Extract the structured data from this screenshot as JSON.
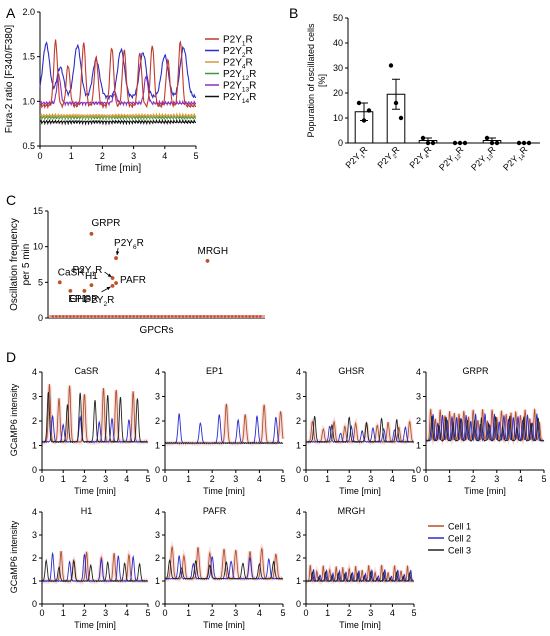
{
  "panels": {
    "A": "A",
    "B": "B",
    "C": "C",
    "D": "D"
  },
  "colors": {
    "P2Y1R": "#c0392b",
    "P2Y2R": "#2c2cc8",
    "P2Y4R": "#d79a3c",
    "P2Y12R": "#3a9a3a",
    "P2Y13R": "#8a2fb5",
    "P2Y14R": "#111111",
    "cell1": "#b5502a",
    "cell2": "#2b2bd0",
    "cell3": "#222222",
    "dot": "#c0502a",
    "band": "#e5a0a0"
  },
  "chart_data": [
    {
      "panel": "A",
      "type": "line",
      "xlabel": "Time [min]",
      "ylabel": "Fura-2 ratio [F340/F380]",
      "xlim": [
        0,
        5
      ],
      "ylim": [
        0.5,
        2.0
      ],
      "xticks": [
        "0",
        "1",
        "2",
        "3",
        "4",
        "5"
      ],
      "yticks": [
        "0.5",
        "1.0",
        "1.5",
        "2.0"
      ],
      "legend_position": "right",
      "series": [
        {
          "name": "P2Y1R",
          "label_base": "P2Y",
          "label_sub": "1",
          "label_suffix": "R",
          "baseline": 0.95,
          "peak": 1.68,
          "peaks": [
            0.5,
            0.9,
            1.4,
            1.8,
            2.3,
            2.7,
            3.2,
            3.6,
            4.1,
            4.5
          ]
        },
        {
          "name": "P2Y2R",
          "label_base": "P2Y",
          "label_sub": "2",
          "label_suffix": "R",
          "baseline": 1.05,
          "peak": 1.65,
          "peaks": [
            0.2,
            0.65,
            1.2,
            1.8,
            2.6,
            3.3,
            4.0,
            4.6
          ]
        },
        {
          "name": "P2Y4R",
          "label_base": "P2Y",
          "label_sub": "4",
          "label_suffix": "R",
          "baseline": 0.84,
          "peak": 0.88,
          "peaks": []
        },
        {
          "name": "P2Y12R",
          "label_base": "P2Y",
          "label_sub": "12",
          "label_suffix": "R",
          "baseline": 0.82,
          "peak": 0.86,
          "peaks": []
        },
        {
          "name": "P2Y13R",
          "label_base": "P2Y",
          "label_sub": "13",
          "label_suffix": "R",
          "baseline": 0.98,
          "peak": 1.3,
          "peaks": [
            0.6,
            2.4,
            3.4
          ]
        },
        {
          "name": "P2Y14R",
          "label_base": "P2Y",
          "label_sub": "14",
          "label_suffix": "R",
          "baseline": 0.77,
          "peak": 0.8,
          "peaks": []
        }
      ]
    },
    {
      "panel": "B",
      "type": "bar",
      "ylabel": "Popuration of oscillated cells [%]",
      "ylim": [
        0,
        50
      ],
      "yticks": [
        "0",
        "10",
        "20",
        "30",
        "40",
        "50"
      ],
      "categories": [
        {
          "base": "P2Y",
          "sub": "1",
          "suffix": "R"
        },
        {
          "base": "P2Y",
          "sub": "2",
          "suffix": "R"
        },
        {
          "base": "P2Y",
          "sub": "4",
          "suffix": "R"
        },
        {
          "base": "P2Y",
          "sub": "12",
          "suffix": "R"
        },
        {
          "base": "P2Y",
          "sub": "13",
          "suffix": "R"
        },
        {
          "base": "P2Y",
          "sub": "14",
          "suffix": "R"
        }
      ],
      "values": [
        12.5,
        19.5,
        1.0,
        0.0,
        1.0,
        0.0
      ],
      "errors": [
        3.5,
        6.0,
        1.0,
        0.0,
        1.0,
        0.0
      ],
      "points": [
        [
          16,
          9,
          13
        ],
        [
          31,
          16,
          10
        ],
        [
          2,
          0,
          0
        ],
        [
          0,
          0,
          0
        ],
        [
          2,
          0,
          0
        ],
        [
          0,
          0,
          0
        ]
      ]
    },
    {
      "panel": "C",
      "type": "scatter",
      "xlabel": "GPCRs",
      "ylabel": "Oscillation frequency per 5 min",
      "ylim": [
        0,
        15
      ],
      "yticks": [
        "0",
        "5",
        "10",
        "15"
      ],
      "n_receptors": 60,
      "points": [
        {
          "label": "CaSR",
          "x": 2,
          "y": 5.0
        },
        {
          "label": "EP1",
          "x": 5,
          "y": 3.8
        },
        {
          "label": "GHSR",
          "x": 9,
          "y": 3.8
        },
        {
          "label": "H1",
          "x": 11,
          "y": 4.6
        },
        {
          "label": "GRPR",
          "x": 11,
          "y": 11.8
        },
        {
          "label": "P2Y1R",
          "label_base": "P2Y",
          "label_sub": "1",
          "label_suffix": "R",
          "x": 17,
          "y": 5.6
        },
        {
          "label": "P2Y2R",
          "label_base": "P2Y",
          "label_sub": "2",
          "label_suffix": "R",
          "x": 17,
          "y": 4.5
        },
        {
          "label": "P2Y6R",
          "label_base": "P2Y",
          "label_sub": "6",
          "label_suffix": "R",
          "x": 18,
          "y": 8.4
        },
        {
          "label": "PAFR",
          "x": 18,
          "y": 4.9
        },
        {
          "label": "MRGH",
          "x": 44,
          "y": 8.0
        }
      ]
    },
    {
      "panel": "D",
      "type": "line",
      "xlabel": "Time [min]",
      "ylabel": "GCaMP6 intensity",
      "xlim": [
        0,
        5
      ],
      "ylim": [
        0,
        4
      ],
      "xticks": [
        "0",
        "1",
        "2",
        "3",
        "4",
        "5"
      ],
      "yticks": [
        "0",
        "1",
        "2",
        "3",
        "4"
      ],
      "legend": [
        "Cell 1",
        "Cell 2",
        "Cell 3"
      ],
      "subplots": [
        {
          "title": "CaSR",
          "baseline": 1.15,
          "peaks": [
            [
              0.35,
              0.8,
              1.3,
              2.0,
              2.9,
              3.5,
              4.3
            ],
            [
              0.5,
              1.0,
              1.8,
              2.7,
              3.3,
              4.1
            ],
            [
              0.3,
              1.2,
              1.8,
              2.5,
              3.1,
              3.7,
              4.5
            ]
          ],
          "heights": [
            3.5,
            2.2,
            3.2
          ]
        },
        {
          "title": "EP1",
          "baseline": 1.1,
          "peaks": [
            [
              2.6,
              3.4,
              4.2,
              4.9
            ],
            [
              0.6,
              1.5,
              2.3,
              3.1,
              3.9,
              4.7
            ],
            []
          ],
          "heights": [
            2.7,
            2.3,
            1.2
          ]
        },
        {
          "title": "GHSR",
          "baseline": 1.15,
          "peaks": [
            [
              0.3,
              0.8,
              1.3,
              1.8,
              2.3,
              2.8,
              3.3,
              3.8,
              4.3,
              4.8
            ],
            [
              1.1,
              1.6,
              2.1,
              2.6,
              3.1,
              3.6,
              4.1,
              4.6
            ],
            [
              0.4,
              1.2,
              2.0,
              2.8,
              3.5,
              4.2
            ]
          ],
          "heights": [
            2.0,
            1.8,
            2.2
          ]
        },
        {
          "title": "GRPR",
          "baseline": 1.2,
          "peaks": [
            [
              0.2,
              0.4,
              0.6,
              0.8,
              1.0,
              1.2,
              1.4,
              1.6,
              1.8,
              2.0,
              2.2,
              2.4,
              2.6,
              2.8,
              3.0,
              3.2,
              3.4,
              3.6,
              3.8,
              4.0,
              4.2,
              4.4,
              4.6,
              4.8
            ],
            [
              0.3,
              0.5,
              0.7,
              0.9,
              1.1,
              1.3,
              1.5,
              1.7,
              1.9,
              2.1,
              2.3,
              2.5,
              2.7,
              2.9,
              3.1,
              3.3,
              3.5,
              3.7,
              3.9,
              4.1,
              4.3,
              4.5,
              4.7
            ],
            [
              0.25,
              0.55,
              0.85,
              1.15,
              1.45,
              1.75,
              2.05,
              2.35,
              2.65,
              2.95,
              3.25,
              3.55,
              3.85,
              4.15,
              4.45,
              4.75
            ]
          ],
          "heights": [
            2.5,
            2.3,
            2.2
          ]
        },
        {
          "title": "H1",
          "baseline": 1.0,
          "peaks": [
            [
              0.9,
              1.5,
              2.1,
              2.8,
              3.4,
              4.1
            ],
            [
              0.5,
              1.3,
              2.0,
              2.8,
              3.6,
              4.3
            ],
            [
              0.2,
              0.8,
              1.5,
              2.3,
              3.1,
              3.9,
              4.6
            ]
          ],
          "heights": [
            2.3,
            2.2,
            1.9
          ]
        },
        {
          "title": "PAFR",
          "baseline": 1.1,
          "peaks": [
            [
              0.3,
              0.8,
              1.4,
              1.9,
              2.5,
              3.0,
              3.6,
              4.1,
              4.7
            ],
            [
              0.6,
              1.2,
              2.0,
              2.8,
              3.6,
              4.4
            ],
            [
              0.2,
              0.7,
              1.3,
              1.9,
              2.6,
              3.3,
              4.0,
              4.6
            ]
          ],
          "heights": [
            2.5,
            2.1,
            1.9
          ]
        },
        {
          "title": "MRGH",
          "baseline": 1.0,
          "peaks": [
            [
              0.2,
              0.5,
              0.8,
              1.1,
              1.4,
              1.7,
              2.0,
              2.3,
              2.6,
              2.9,
              3.2,
              3.5,
              3.8,
              4.1,
              4.4,
              4.7
            ],
            [
              0.35,
              0.65,
              0.95,
              1.25,
              1.55,
              1.85,
              2.15,
              2.45,
              2.75,
              3.05,
              3.35,
              3.65,
              3.95,
              4.25,
              4.55,
              4.85
            ],
            [
              0.3,
              0.6,
              0.9,
              1.2,
              1.5,
              1.8,
              2.1,
              2.4,
              2.7,
              3.0,
              3.3,
              3.6,
              3.9,
              4.2,
              4.5,
              4.8
            ]
          ],
          "heights": [
            1.7,
            1.5,
            1.4
          ]
        }
      ]
    }
  ]
}
